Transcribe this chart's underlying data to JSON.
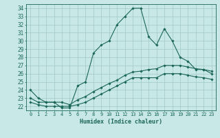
{
  "title": "",
  "xlabel": "Humidex (Indice chaleur)",
  "xlim": [
    -0.5,
    23.5
  ],
  "ylim": [
    21.5,
    34.5
  ],
  "xticks": [
    0,
    1,
    2,
    3,
    4,
    5,
    6,
    7,
    8,
    9,
    10,
    11,
    12,
    13,
    14,
    15,
    16,
    17,
    18,
    19,
    20,
    21,
    22,
    23
  ],
  "yticks": [
    22,
    23,
    24,
    25,
    26,
    27,
    28,
    29,
    30,
    31,
    32,
    33,
    34
  ],
  "background_color": "#c8e8e8",
  "grid_color": "#a0c8c8",
  "line_color": "#1a6655",
  "hours": [
    0,
    1,
    2,
    3,
    4,
    5,
    6,
    7,
    8,
    9,
    10,
    11,
    12,
    13,
    14,
    15,
    16,
    17,
    18,
    19,
    20,
    21,
    22,
    23
  ],
  "line1": [
    24,
    23,
    22.5,
    22.5,
    21.8,
    21.8,
    24.5,
    25,
    28.5,
    29.5,
    30,
    32,
    33,
    34,
    34,
    30.5,
    29.5,
    31.5,
    30,
    28,
    27.5,
    26.5,
    26.5,
    26
  ],
  "line2": [
    23,
    22.5,
    22.5,
    22.5,
    22.5,
    22.2,
    22.8,
    23.2,
    23.8,
    24.3,
    24.8,
    25.2,
    25.8,
    26.2,
    26.3,
    26.5,
    26.6,
    27.0,
    27.0,
    27.0,
    26.8,
    26.6,
    26.5,
    26.3
  ],
  "line3": [
    22.5,
    22.2,
    22.0,
    22.0,
    22.0,
    22.0,
    22.2,
    22.5,
    23.0,
    23.5,
    24.0,
    24.5,
    25.0,
    25.5,
    25.5,
    25.5,
    25.5,
    26.0,
    26.0,
    26.0,
    25.8,
    25.6,
    25.5,
    25.3
  ]
}
